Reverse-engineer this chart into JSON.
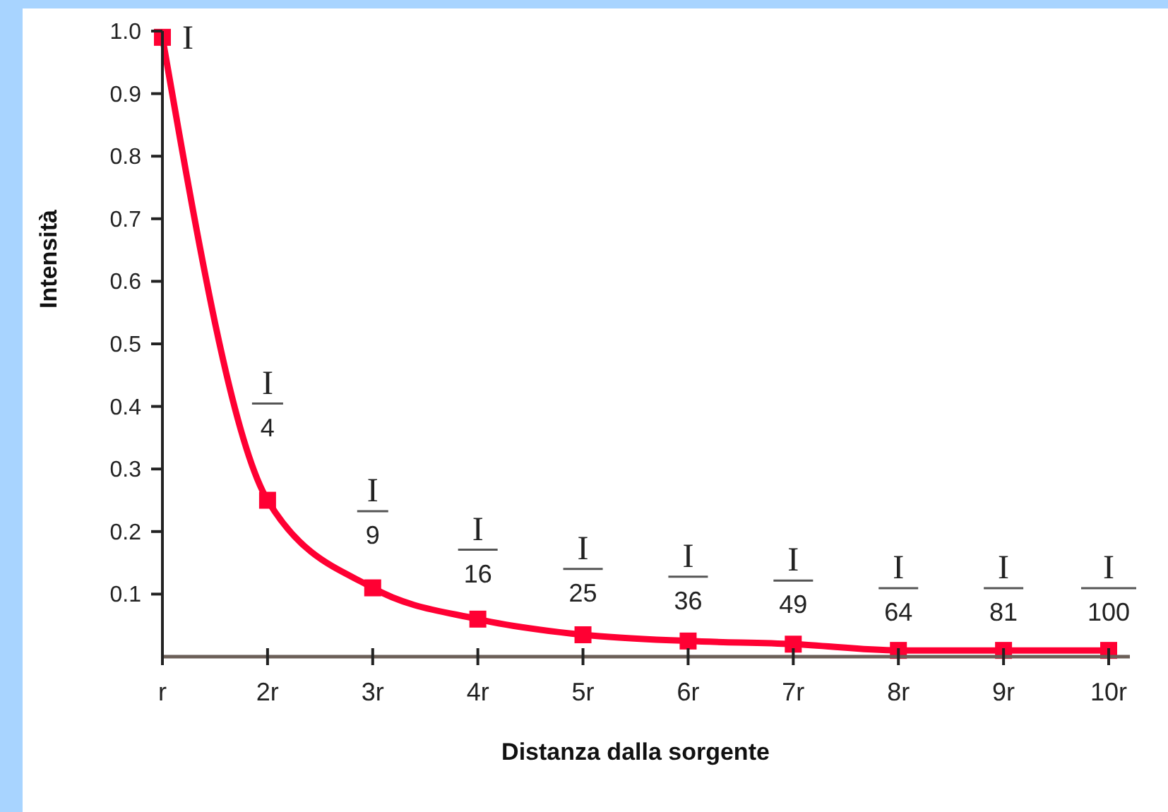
{
  "chart_data": {
    "type": "line",
    "xlabel": "Distanza dalla sorgente",
    "ylabel": "Intensità",
    "categories": [
      "r",
      "2r",
      "3r",
      "4r",
      "5r",
      "6r",
      "7r",
      "8r",
      "9r",
      "10r"
    ],
    "series": [
      {
        "color": "#ff0033",
        "values": [
          0.99,
          0.25,
          0.11,
          0.06,
          0.035,
          0.025,
          0.02,
          0.01,
          0.01,
          0.01
        ]
      }
    ],
    "annotations": [
      "I",
      "I",
      "4",
      "I",
      "9",
      "I",
      "16",
      "I",
      "25",
      "I",
      "36",
      "I",
      "49",
      "I",
      "64",
      "I",
      "81",
      "I",
      "100"
    ],
    "ylim": [
      0,
      1
    ],
    "yticks": [
      0.1,
      0.2,
      0.3,
      0.4,
      0.5,
      0.6,
      0.7,
      0.8,
      0.9,
      {
        "value": 1,
        "label": "1.0"
      }
    ],
    "marker": "square",
    "line_style": "solid",
    "grid": false
  }
}
